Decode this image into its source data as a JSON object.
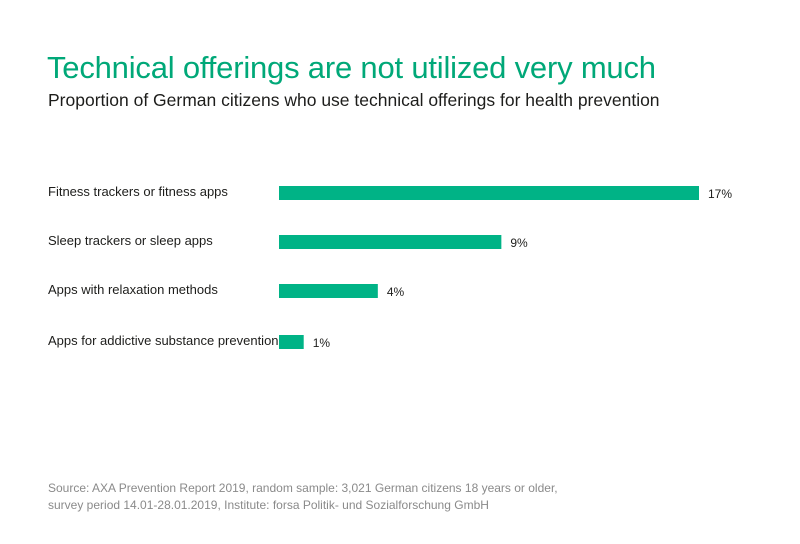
{
  "header": {
    "title": "Technical offerings are not utilized very much",
    "subtitle": "Proportion of German citizens who use technical offerings for health prevention"
  },
  "colors": {
    "accent": "#00b386",
    "title": "#00a878",
    "text": "#1d1d1b",
    "source": "#8a8a8a"
  },
  "chart_data": {
    "type": "bar",
    "orientation": "horizontal",
    "title": "Technical offerings are not utilized very much",
    "subtitle": "Proportion of German citizens who use technical offerings for health prevention",
    "categories": [
      "Fitness trackers or fitness apps",
      "Sleep trackers or sleep apps",
      "Apps with relaxation methods",
      "Apps for addictive substance prevention"
    ],
    "values": [
      17,
      9,
      4,
      1
    ],
    "value_labels": [
      "17%",
      "9%",
      "4%",
      "1%"
    ],
    "unit": "%",
    "xlim": [
      0,
      17
    ],
    "grid": false,
    "legend": "none"
  },
  "footer": {
    "source_line1": "Source: AXA Prevention Report 2019, random sample: 3,021 German citizens 18 years or older,",
    "source_line2": "survey period 14.01-28.01.2019, Institute: forsa Politik- und Sozialforschung GmbH"
  }
}
